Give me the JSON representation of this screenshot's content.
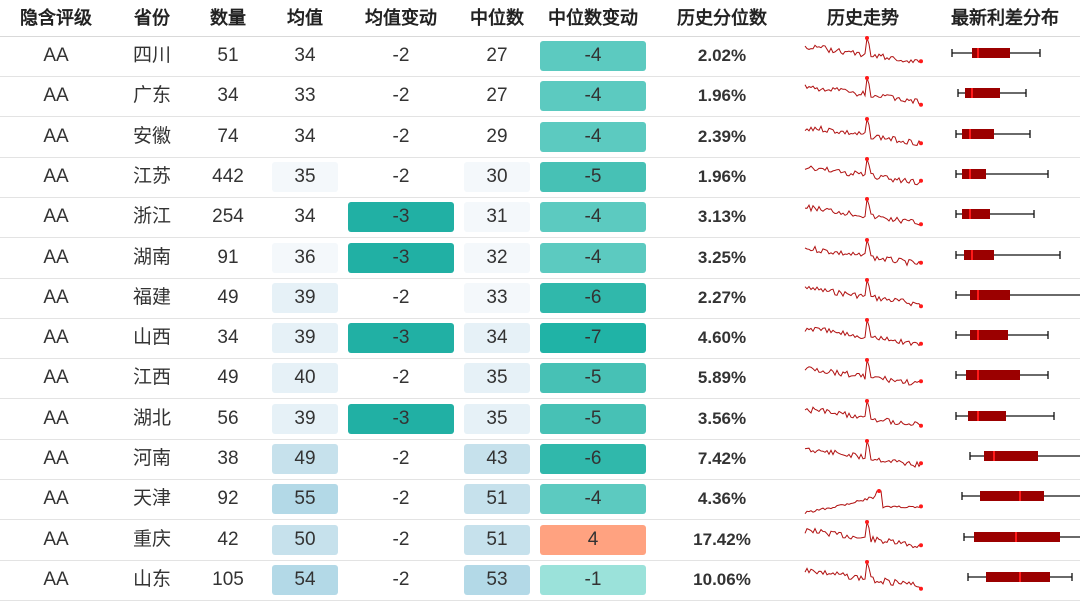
{
  "headers": {
    "rating": "隐含评级",
    "province": "省份",
    "count": "数量",
    "mean": "均值",
    "mean_change": "均值变动",
    "median": "中位数",
    "median_change": "中位数变动",
    "hist_pct": "历史分位数",
    "trend": "历史走势",
    "dist": "最新利差分布"
  },
  "rows": [
    {
      "rating": "AA",
      "province": "四川",
      "count": "51",
      "mean": "34",
      "mean_change": "-2",
      "median": "27",
      "median_change": "-4",
      "hist_pct": "2.02%",
      "box": {
        "wmin": 12,
        "q1": 32,
        "med": 38,
        "q3": 70,
        "wmax": 100
      },
      "spark": 0
    },
    {
      "rating": "AA",
      "province": "广东",
      "count": "34",
      "mean": "33",
      "mean_change": "-2",
      "median": "27",
      "median_change": "-4",
      "hist_pct": "1.96%",
      "box": {
        "wmin": 18,
        "q1": 25,
        "med": 32,
        "q3": 60,
        "wmax": 86
      },
      "spark": 1
    },
    {
      "rating": "AA",
      "province": "安徽",
      "count": "74",
      "mean": "34",
      "mean_change": "-2",
      "median": "29",
      "median_change": "-4",
      "hist_pct": "2.39%",
      "box": {
        "wmin": 16,
        "q1": 22,
        "med": 30,
        "q3": 54,
        "wmax": 90
      },
      "spark": 2
    },
    {
      "rating": "AA",
      "province": "江苏",
      "count": "442",
      "mean": "35",
      "mean_change": "-2",
      "median": "30",
      "median_change": "-5",
      "hist_pct": "1.96%",
      "box": {
        "wmin": 16,
        "q1": 22,
        "med": 30,
        "q3": 46,
        "wmax": 108
      },
      "spark": 3
    },
    {
      "rating": "AA",
      "province": "浙江",
      "count": "254",
      "mean": "34",
      "mean_change": "-3",
      "median": "31",
      "median_change": "-4",
      "hist_pct": "3.13%",
      "box": {
        "wmin": 16,
        "q1": 22,
        "med": 30,
        "q3": 50,
        "wmax": 94
      },
      "spark": 4
    },
    {
      "rating": "AA",
      "province": "湖南",
      "count": "91",
      "mean": "36",
      "mean_change": "-3",
      "median": "32",
      "median_change": "-4",
      "hist_pct": "3.25%",
      "box": {
        "wmin": 16,
        "q1": 24,
        "med": 32,
        "q3": 54,
        "wmax": 120
      },
      "spark": 5
    },
    {
      "rating": "AA",
      "province": "福建",
      "count": "49",
      "mean": "39",
      "mean_change": "-2",
      "median": "33",
      "median_change": "-6",
      "hist_pct": "2.27%",
      "box": {
        "wmin": 16,
        "q1": 30,
        "med": 38,
        "q3": 70,
        "wmax": 150
      },
      "spark": 6
    },
    {
      "rating": "AA",
      "province": "山西",
      "count": "34",
      "mean": "39",
      "mean_change": "-3",
      "median": "34",
      "median_change": "-7",
      "hist_pct": "4.60%",
      "box": {
        "wmin": 16,
        "q1": 30,
        "med": 38,
        "q3": 68,
        "wmax": 108
      },
      "spark": 7
    },
    {
      "rating": "AA",
      "province": "江西",
      "count": "49",
      "mean": "40",
      "mean_change": "-2",
      "median": "35",
      "median_change": "-5",
      "hist_pct": "5.89%",
      "box": {
        "wmin": 16,
        "q1": 26,
        "med": 38,
        "q3": 80,
        "wmax": 108
      },
      "spark": 8
    },
    {
      "rating": "AA",
      "province": "湖北",
      "count": "56",
      "mean": "39",
      "mean_change": "-3",
      "median": "35",
      "median_change": "-5",
      "hist_pct": "3.56%",
      "box": {
        "wmin": 16,
        "q1": 28,
        "med": 38,
        "q3": 66,
        "wmax": 114
      },
      "spark": 9
    },
    {
      "rating": "AA",
      "province": "河南",
      "count": "38",
      "mean": "49",
      "mean_change": "-2",
      "median": "43",
      "median_change": "-6",
      "hist_pct": "7.42%",
      "box": {
        "wmin": 30,
        "q1": 44,
        "med": 54,
        "q3": 98,
        "wmax": 146
      },
      "spark": 10
    },
    {
      "rating": "AA",
      "province": "天津",
      "count": "92",
      "mean": "55",
      "mean_change": "-2",
      "median": "51",
      "median_change": "-4",
      "hist_pct": "4.36%",
      "box": {
        "wmin": 22,
        "q1": 40,
        "med": 80,
        "q3": 104,
        "wmax": 150
      },
      "spark": 11
    },
    {
      "rating": "AA",
      "province": "重庆",
      "count": "42",
      "mean": "50",
      "mean_change": "-2",
      "median": "51",
      "median_change": "4",
      "hist_pct": "17.42%",
      "box": {
        "wmin": 24,
        "q1": 34,
        "med": 76,
        "q3": 120,
        "wmax": 146
      },
      "spark": 12
    },
    {
      "rating": "AA",
      "province": "山东",
      "count": "105",
      "mean": "54",
      "mean_change": "-2",
      "median": "53",
      "median_change": "-1",
      "hist_pct": "10.06%",
      "box": {
        "wmin": 28,
        "q1": 46,
        "med": 80,
        "q3": 110,
        "wmax": 132
      },
      "spark": 13
    }
  ],
  "colors": {
    "header_text": "#222222",
    "sparkline": "#b01010",
    "box_fill": "#9b0000",
    "median_mark": "#ff1a1a",
    "whisker": "#111111",
    "mean_bg": [
      "#ffffff",
      "#f4f8fb",
      "#e6f1f7",
      "#c6e1ec",
      "#b3d9e7"
    ],
    "mean_change_bg": {
      "-3": "#21b0a4",
      "-2": "#ffffff"
    },
    "median_change_bg": {
      "-7": "#20b3a6",
      "-6": "#30b8ab",
      "-5": "#47c1b5",
      "-4": "#5ccac0",
      "-1": "#9be2da",
      "4": "#ffa280"
    }
  }
}
